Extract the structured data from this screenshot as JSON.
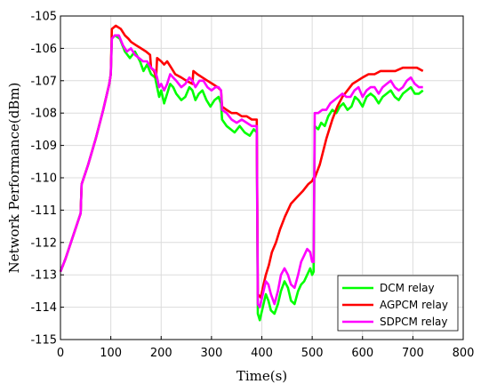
{
  "chart_data": {
    "type": "line",
    "title": "",
    "xlabel": "Time(s)",
    "ylabel": "Network Performance(dBm)",
    "xlim": [
      0,
      800
    ],
    "ylim": [
      -115,
      -105
    ],
    "xticks": [
      0,
      100,
      200,
      300,
      400,
      500,
      600,
      700,
      800
    ],
    "yticks": [
      -115,
      -114,
      -113,
      -112,
      -111,
      -110,
      -109,
      -108,
      -107,
      -106,
      -105
    ],
    "grid": true,
    "legend_position": "bottom-right",
    "series": [
      {
        "name": "DCM relay",
        "color": "#00ff00",
        "points": [
          [
            0,
            -112.9
          ],
          [
            10,
            -112.5
          ],
          [
            25,
            -111.8
          ],
          [
            40,
            -111.1
          ],
          [
            42,
            -110.2
          ],
          [
            55,
            -109.6
          ],
          [
            70,
            -108.8
          ],
          [
            85,
            -107.9
          ],
          [
            97,
            -107.1
          ],
          [
            100,
            -106.8
          ],
          [
            102,
            -105.7
          ],
          [
            108,
            -105.6
          ],
          [
            118,
            -105.7
          ],
          [
            128,
            -106.1
          ],
          [
            138,
            -106.3
          ],
          [
            148,
            -106.1
          ],
          [
            158,
            -106.4
          ],
          [
            165,
            -106.7
          ],
          [
            172,
            -106.5
          ],
          [
            180,
            -106.8
          ],
          [
            188,
            -106.9
          ],
          [
            192,
            -107.2
          ],
          [
            196,
            -107.5
          ],
          [
            200,
            -107.3
          ],
          [
            206,
            -107.7
          ],
          [
            212,
            -107.4
          ],
          [
            218,
            -107.1
          ],
          [
            224,
            -107.2
          ],
          [
            230,
            -107.4
          ],
          [
            240,
            -107.6
          ],
          [
            248,
            -107.5
          ],
          [
            256,
            -107.2
          ],
          [
            262,
            -107.3
          ],
          [
            268,
            -107.6
          ],
          [
            275,
            -107.4
          ],
          [
            282,
            -107.3
          ],
          [
            290,
            -107.6
          ],
          [
            298,
            -107.8
          ],
          [
            306,
            -107.6
          ],
          [
            314,
            -107.5
          ],
          [
            319,
            -107.7
          ],
          [
            321,
            -108.2
          ],
          [
            330,
            -108.4
          ],
          [
            338,
            -108.5
          ],
          [
            346,
            -108.6
          ],
          [
            356,
            -108.4
          ],
          [
            366,
            -108.6
          ],
          [
            376,
            -108.7
          ],
          [
            384,
            -108.5
          ],
          [
            390,
            -108.6
          ],
          [
            392,
            -114.2
          ],
          [
            396,
            -114.4
          ],
          [
            402,
            -114.0
          ],
          [
            408,
            -113.6
          ],
          [
            413,
            -113.8
          ],
          [
            418,
            -114.1
          ],
          [
            425,
            -114.2
          ],
          [
            432,
            -113.9
          ],
          [
            438,
            -113.5
          ],
          [
            445,
            -113.2
          ],
          [
            452,
            -113.4
          ],
          [
            458,
            -113.8
          ],
          [
            465,
            -113.9
          ],
          [
            472,
            -113.5
          ],
          [
            478,
            -113.3
          ],
          [
            484,
            -113.2
          ],
          [
            490,
            -113.0
          ],
          [
            496,
            -112.8
          ],
          [
            500,
            -113.0
          ],
          [
            503,
            -112.9
          ],
          [
            505,
            -108.4
          ],
          [
            512,
            -108.5
          ],
          [
            518,
            -108.3
          ],
          [
            525,
            -108.4
          ],
          [
            532,
            -108.1
          ],
          [
            540,
            -107.9
          ],
          [
            548,
            -108.0
          ],
          [
            555,
            -107.8
          ],
          [
            562,
            -107.7
          ],
          [
            570,
            -107.9
          ],
          [
            578,
            -107.8
          ],
          [
            585,
            -107.5
          ],
          [
            592,
            -107.6
          ],
          [
            600,
            -107.8
          ],
          [
            608,
            -107.5
          ],
          [
            616,
            -107.4
          ],
          [
            624,
            -107.5
          ],
          [
            632,
            -107.7
          ],
          [
            640,
            -107.5
          ],
          [
            648,
            -107.4
          ],
          [
            656,
            -107.3
          ],
          [
            664,
            -107.5
          ],
          [
            672,
            -107.6
          ],
          [
            680,
            -107.4
          ],
          [
            688,
            -107.3
          ],
          [
            696,
            -107.2
          ],
          [
            704,
            -107.4
          ],
          [
            712,
            -107.4
          ],
          [
            720,
            -107.3
          ]
        ]
      },
      {
        "name": "AGPCM relay",
        "color": "#ff0000",
        "points": [
          [
            0,
            -112.9
          ],
          [
            10,
            -112.5
          ],
          [
            25,
            -111.8
          ],
          [
            40,
            -111.1
          ],
          [
            42,
            -110.2
          ],
          [
            55,
            -109.6
          ],
          [
            70,
            -108.8
          ],
          [
            85,
            -107.9
          ],
          [
            97,
            -107.1
          ],
          [
            100,
            -106.8
          ],
          [
            102,
            -105.4
          ],
          [
            110,
            -105.3
          ],
          [
            120,
            -105.4
          ],
          [
            128,
            -105.6
          ],
          [
            135,
            -105.7
          ],
          [
            140,
            -105.8
          ],
          [
            150,
            -105.9
          ],
          [
            160,
            -106.0
          ],
          [
            170,
            -106.1
          ],
          [
            178,
            -106.2
          ],
          [
            180,
            -106.6
          ],
          [
            186,
            -106.7
          ],
          [
            190,
            -106.9
          ],
          [
            192,
            -106.3
          ],
          [
            200,
            -106.4
          ],
          [
            206,
            -106.5
          ],
          [
            212,
            -106.4
          ],
          [
            220,
            -106.6
          ],
          [
            228,
            -106.8
          ],
          [
            240,
            -106.9
          ],
          [
            250,
            -107.0
          ],
          [
            262,
            -107.1
          ],
          [
            264,
            -106.7
          ],
          [
            272,
            -106.8
          ],
          [
            282,
            -106.9
          ],
          [
            292,
            -107.0
          ],
          [
            302,
            -107.1
          ],
          [
            312,
            -107.2
          ],
          [
            319,
            -107.3
          ],
          [
            321,
            -107.8
          ],
          [
            330,
            -107.9
          ],
          [
            340,
            -108.0
          ],
          [
            350,
            -108.0
          ],
          [
            360,
            -108.1
          ],
          [
            370,
            -108.1
          ],
          [
            380,
            -108.2
          ],
          [
            390,
            -108.2
          ],
          [
            392,
            -113.6
          ],
          [
            398,
            -113.7
          ],
          [
            402,
            -113.4
          ],
          [
            408,
            -113.0
          ],
          [
            414,
            -112.7
          ],
          [
            420,
            -112.3
          ],
          [
            428,
            -112.0
          ],
          [
            436,
            -111.6
          ],
          [
            446,
            -111.2
          ],
          [
            458,
            -110.8
          ],
          [
            470,
            -110.6
          ],
          [
            482,
            -110.4
          ],
          [
            492,
            -110.2
          ],
          [
            500,
            -110.1
          ],
          [
            503,
            -110.0
          ],
          [
            505,
            -110.0
          ],
          [
            515,
            -109.6
          ],
          [
            528,
            -108.8
          ],
          [
            540,
            -108.2
          ],
          [
            550,
            -107.8
          ],
          [
            560,
            -107.5
          ],
          [
            570,
            -107.3
          ],
          [
            580,
            -107.1
          ],
          [
            590,
            -107.0
          ],
          [
            600,
            -106.9
          ],
          [
            612,
            -106.8
          ],
          [
            624,
            -106.8
          ],
          [
            636,
            -106.7
          ],
          [
            650,
            -106.7
          ],
          [
            665,
            -106.7
          ],
          [
            680,
            -106.6
          ],
          [
            695,
            -106.6
          ],
          [
            708,
            -106.6
          ],
          [
            720,
            -106.7
          ]
        ]
      },
      {
        "name": "SDPCM relay",
        "color": "#ff00ff",
        "points": [
          [
            0,
            -112.9
          ],
          [
            10,
            -112.5
          ],
          [
            25,
            -111.8
          ],
          [
            40,
            -111.1
          ],
          [
            42,
            -110.2
          ],
          [
            55,
            -109.6
          ],
          [
            70,
            -108.8
          ],
          [
            85,
            -107.9
          ],
          [
            97,
            -107.1
          ],
          [
            100,
            -106.8
          ],
          [
            102,
            -105.7
          ],
          [
            108,
            -105.6
          ],
          [
            116,
            -105.6
          ],
          [
            124,
            -105.9
          ],
          [
            132,
            -106.1
          ],
          [
            140,
            -106.0
          ],
          [
            148,
            -106.2
          ],
          [
            156,
            -106.3
          ],
          [
            164,
            -106.4
          ],
          [
            172,
            -106.4
          ],
          [
            180,
            -106.6
          ],
          [
            188,
            -106.7
          ],
          [
            192,
            -106.9
          ],
          [
            196,
            -107.2
          ],
          [
            200,
            -107.1
          ],
          [
            206,
            -107.3
          ],
          [
            212,
            -107.1
          ],
          [
            218,
            -106.8
          ],
          [
            224,
            -106.9
          ],
          [
            230,
            -107.0
          ],
          [
            240,
            -107.2
          ],
          [
            248,
            -107.1
          ],
          [
            256,
            -106.9
          ],
          [
            262,
            -107.0
          ],
          [
            268,
            -107.2
          ],
          [
            276,
            -107.0
          ],
          [
            284,
            -107.0
          ],
          [
            292,
            -107.2
          ],
          [
            300,
            -107.3
          ],
          [
            308,
            -107.2
          ],
          [
            314,
            -107.2
          ],
          [
            319,
            -107.3
          ],
          [
            321,
            -107.9
          ],
          [
            330,
            -108.0
          ],
          [
            340,
            -108.2
          ],
          [
            350,
            -108.3
          ],
          [
            360,
            -108.2
          ],
          [
            370,
            -108.3
          ],
          [
            380,
            -108.4
          ],
          [
            390,
            -108.4
          ],
          [
            392,
            -113.9
          ],
          [
            396,
            -114.0
          ],
          [
            402,
            -113.6
          ],
          [
            408,
            -113.2
          ],
          [
            413,
            -113.3
          ],
          [
            418,
            -113.6
          ],
          [
            425,
            -113.9
          ],
          [
            432,
            -113.5
          ],
          [
            438,
            -113.0
          ],
          [
            445,
            -112.8
          ],
          [
            452,
            -113.0
          ],
          [
            458,
            -113.3
          ],
          [
            465,
            -113.4
          ],
          [
            472,
            -113.0
          ],
          [
            478,
            -112.6
          ],
          [
            484,
            -112.4
          ],
          [
            490,
            -112.2
          ],
          [
            496,
            -112.3
          ],
          [
            500,
            -112.6
          ],
          [
            503,
            -112.6
          ],
          [
            505,
            -108.0
          ],
          [
            512,
            -108.0
          ],
          [
            520,
            -107.9
          ],
          [
            528,
            -107.9
          ],
          [
            536,
            -107.7
          ],
          [
            544,
            -107.6
          ],
          [
            552,
            -107.5
          ],
          [
            560,
            -107.4
          ],
          [
            568,
            -107.5
          ],
          [
            576,
            -107.5
          ],
          [
            584,
            -107.3
          ],
          [
            592,
            -107.2
          ],
          [
            600,
            -107.5
          ],
          [
            608,
            -107.3
          ],
          [
            616,
            -107.2
          ],
          [
            624,
            -107.2
          ],
          [
            632,
            -107.4
          ],
          [
            640,
            -107.2
          ],
          [
            648,
            -107.1
          ],
          [
            656,
            -107.0
          ],
          [
            664,
            -107.2
          ],
          [
            672,
            -107.3
          ],
          [
            680,
            -107.2
          ],
          [
            688,
            -107.0
          ],
          [
            696,
            -106.9
          ],
          [
            704,
            -107.1
          ],
          [
            712,
            -107.2
          ],
          [
            720,
            -107.2
          ]
        ]
      }
    ]
  }
}
